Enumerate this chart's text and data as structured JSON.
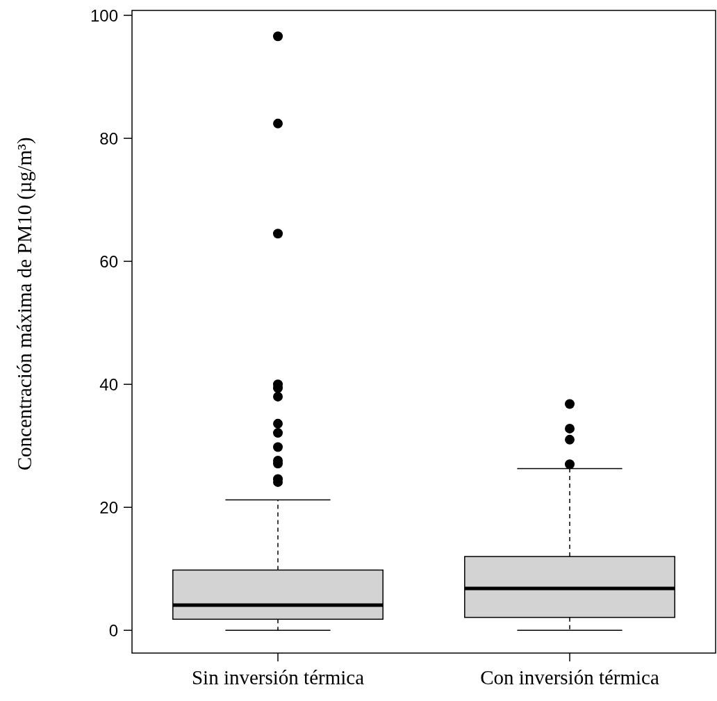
{
  "chart_data": {
    "type": "box",
    "ylabel": "Concentración máxima de PM10 (µg/m³)",
    "categories": [
      "Sin inversión térmica",
      "Con inversión térmica"
    ],
    "color": "#d3d3d3",
    "ylim": [
      -3.7,
      100.8
    ],
    "yticks": [
      0,
      20,
      40,
      60,
      80,
      100
    ],
    "grid": false,
    "boxes": [
      {
        "low": 0,
        "q1": 1.8,
        "median": 4.1,
        "q3": 9.8,
        "high": 21.2,
        "outliers": [
          96.6,
          82.4,
          64.5,
          40,
          39.4,
          38,
          33.6,
          32.1,
          29.8,
          27.6,
          27.1,
          24.6,
          24.1
        ]
      },
      {
        "low": 0,
        "q1": 2.1,
        "median": 6.8,
        "q3": 12,
        "high": 26.3,
        "outliers": [
          36.8,
          32.8,
          31,
          27
        ]
      }
    ]
  }
}
